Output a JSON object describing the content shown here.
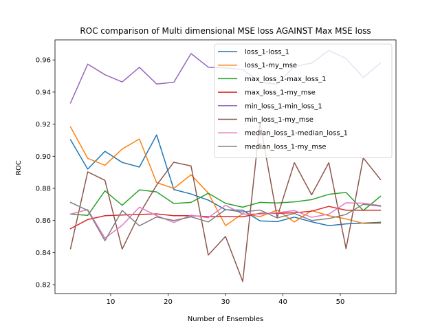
{
  "chart_data": {
    "type": "line",
    "title": "ROC comparison of Multi dimensional MSE loss AGAINST Max MSE loss",
    "xlabel": "Number of Ensembles",
    "ylabel": "ROC",
    "xlim": [
      0.3,
      59.7
    ],
    "ylim": [
      0.8145,
      0.9725
    ],
    "xticks": [
      10,
      20,
      30,
      40,
      50
    ],
    "yticks": [
      0.82,
      0.84,
      0.86,
      0.88,
      0.9,
      0.92,
      0.94,
      0.96
    ],
    "ytick_labels": [
      "0.82",
      "0.84",
      "0.86",
      "0.88",
      "0.90",
      "0.92",
      "0.94",
      "0.96"
    ],
    "grid": false,
    "legend_position": "upper right",
    "x": [
      3,
      6,
      9,
      12,
      15,
      18,
      21,
      24,
      27,
      30,
      33,
      36,
      39,
      42,
      45,
      48,
      51,
      54,
      57
    ],
    "series": [
      {
        "name": "loss_1-loss_1",
        "color": "#1f77b4",
        "values": [
          0.9103,
          0.892,
          0.9031,
          0.8962,
          0.8933,
          0.9133,
          0.8793,
          0.8765,
          0.8727,
          0.8667,
          0.8664,
          0.8598,
          0.8593,
          0.8621,
          0.8592,
          0.8568,
          0.8579,
          0.8584,
          0.8589
        ]
      },
      {
        "name": "loss_1-my_mse",
        "color": "#ff7f0e",
        "values": [
          0.9183,
          0.8987,
          0.8944,
          0.9045,
          0.9108,
          0.8836,
          0.88,
          0.8885,
          0.8771,
          0.8568,
          0.8643,
          0.8624,
          0.8665,
          0.8591,
          0.8662,
          0.863,
          0.861,
          0.8582,
          0.8582
        ]
      },
      {
        "name": "max_loss_1-max_loss_1",
        "color": "#2ca02c",
        "values": [
          0.864,
          0.8632,
          0.8785,
          0.8695,
          0.8791,
          0.8778,
          0.8706,
          0.8713,
          0.877,
          0.8707,
          0.8683,
          0.8713,
          0.8709,
          0.8716,
          0.873,
          0.8763,
          0.8775,
          0.8662,
          0.8751
        ]
      },
      {
        "name": "max_loss_1-my_mse",
        "color": "#d62728",
        "values": [
          0.8549,
          0.8606,
          0.863,
          0.8634,
          0.8638,
          0.8641,
          0.863,
          0.863,
          0.8624,
          0.8624,
          0.8623,
          0.8645,
          0.8645,
          0.8648,
          0.8658,
          0.8688,
          0.8664,
          0.8664,
          0.8664
        ]
      },
      {
        "name": "min_loss_1-min_loss_1",
        "color": "#9467bd",
        "values": [
          0.9332,
          0.9574,
          0.9508,
          0.9463,
          0.9554,
          0.945,
          0.9461,
          0.964,
          0.9555,
          0.955,
          0.954,
          0.946,
          0.945,
          0.956,
          0.958,
          0.9659,
          0.9609,
          0.949,
          0.9582
        ]
      },
      {
        "name": "min_loss_1-my_mse",
        "color": "#8c564b",
        "values": [
          0.8424,
          0.8903,
          0.885,
          0.8422,
          0.864,
          0.882,
          0.8963,
          0.894,
          0.8385,
          0.8501,
          0.822,
          0.921,
          0.862,
          0.896,
          0.876,
          0.896,
          0.8425,
          0.899,
          0.8855
        ]
      },
      {
        "name": "median_loss_1-median_loss_1",
        "color": "#e377c2",
        "values": [
          0.864,
          0.8668,
          0.849,
          0.857,
          0.8683,
          0.863,
          0.8588,
          0.8633,
          0.8617,
          0.8695,
          0.864,
          0.864,
          0.8648,
          0.8662,
          0.862,
          0.864,
          0.871,
          0.8708,
          0.8693
        ]
      },
      {
        "name": "median_loss_1-my_mse",
        "color": "#7f7f7f",
        "values": [
          0.8713,
          0.8663,
          0.8474,
          0.8663,
          0.8567,
          0.8622,
          0.86,
          0.8623,
          0.8591,
          0.8668,
          0.8653,
          0.8665,
          0.8616,
          0.8644,
          0.86,
          0.8612,
          0.8638,
          0.8701,
          0.8689
        ]
      }
    ]
  }
}
